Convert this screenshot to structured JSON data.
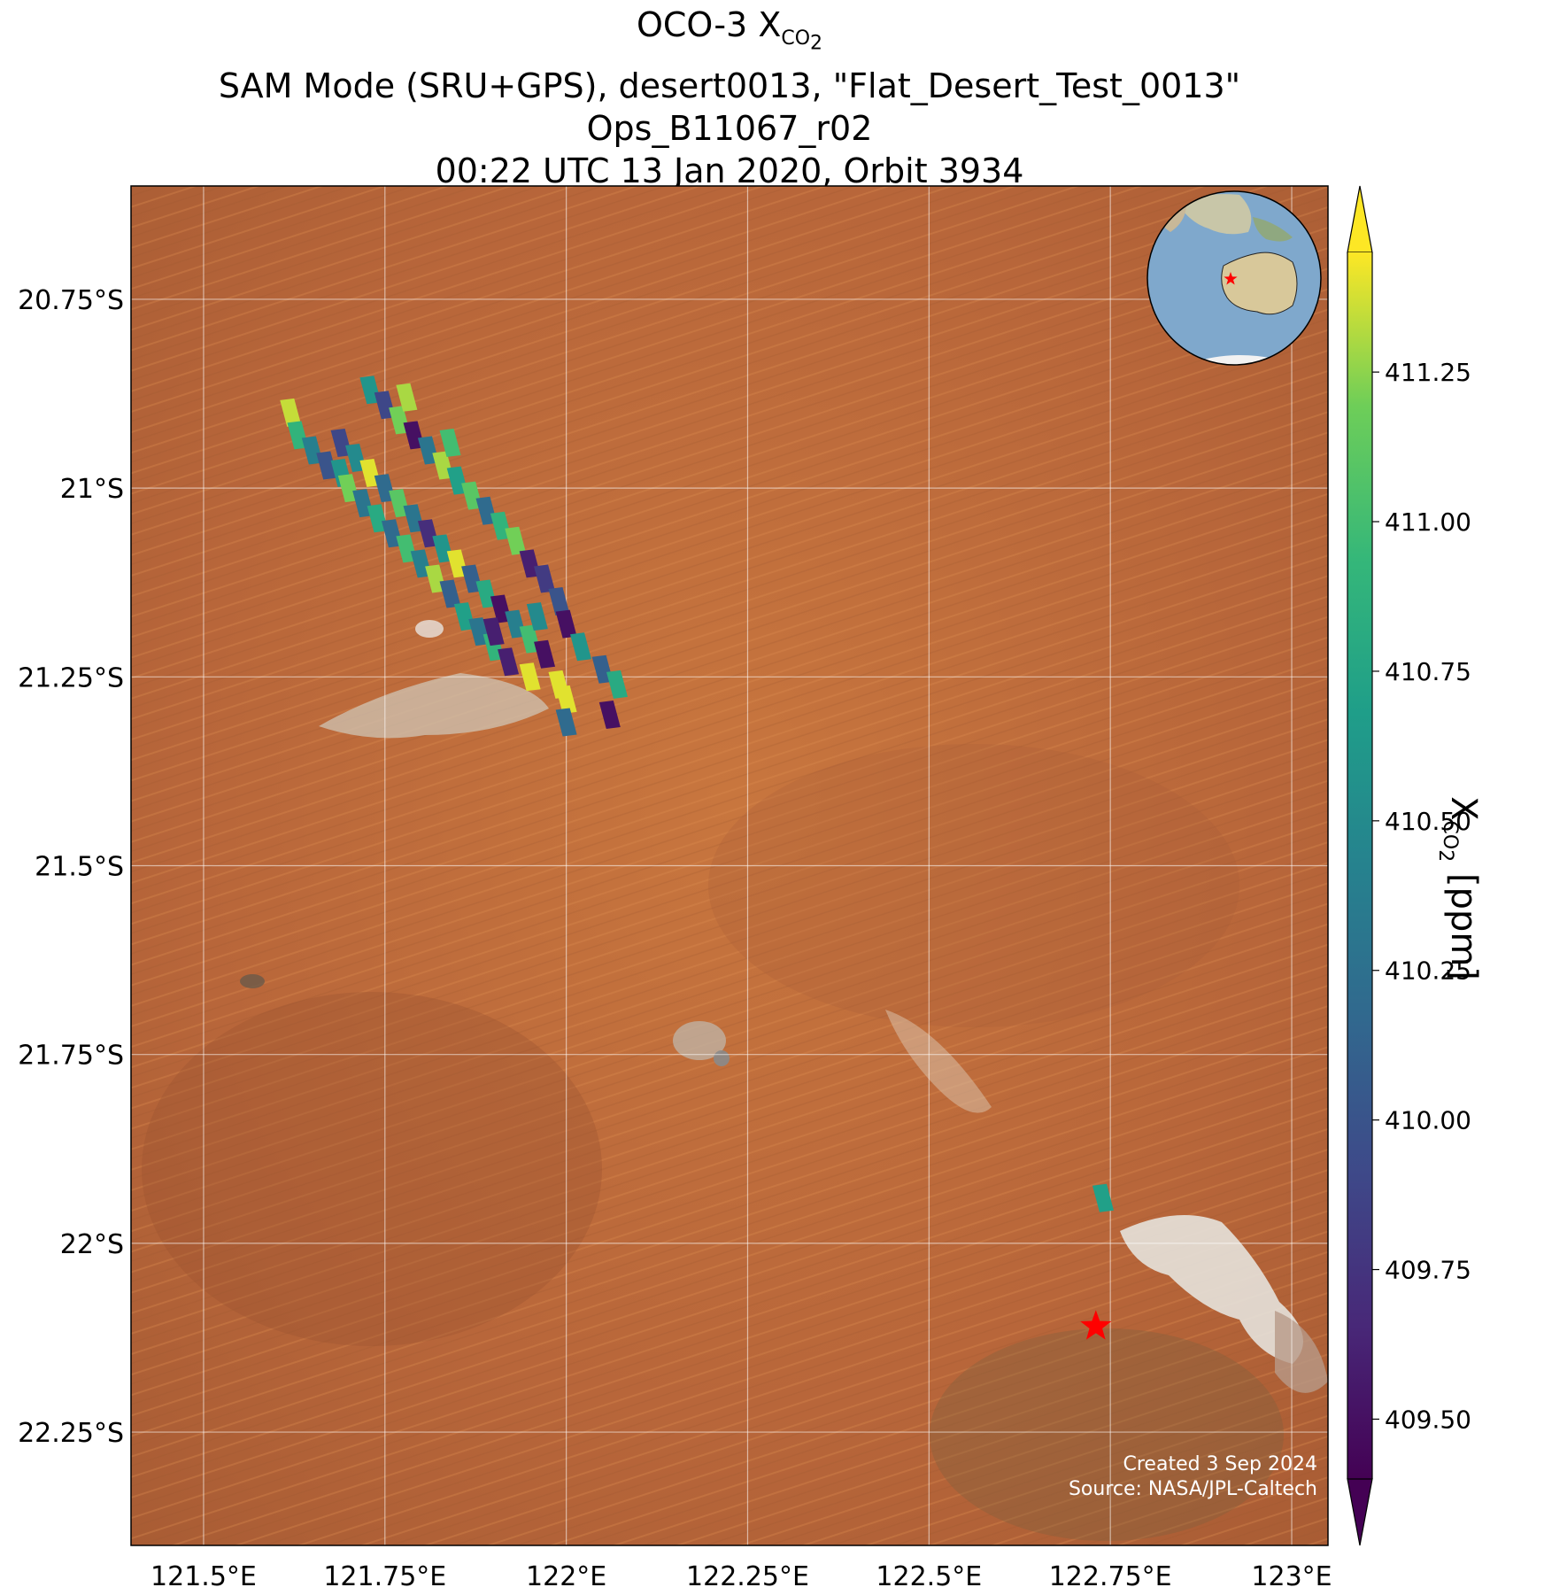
{
  "title": {
    "line1_prefix": "OCO-3 X",
    "line1_sub": "CO",
    "line1_sub2": "2",
    "line2": "SAM Mode (SRU+GPS), desert0013, \"Flat_Desert_Test_0013\"",
    "line3": "Ops_B11067_r02",
    "line4": "00:22 UTC 13 Jan 2020, Orbit 3934"
  },
  "map": {
    "lon_range": [
      121.4,
      123.05
    ],
    "lat_range": [
      -22.4,
      -20.6
    ],
    "lon_ticks": [
      {
        "value": 121.5,
        "label": "121.5°E"
      },
      {
        "value": 121.75,
        "label": "121.75°E"
      },
      {
        "value": 122.0,
        "label": "122°E"
      },
      {
        "value": 122.25,
        "label": "122.25°E"
      },
      {
        "value": 122.5,
        "label": "122.5°E"
      },
      {
        "value": 122.75,
        "label": "122.75°E"
      },
      {
        "value": 123.0,
        "label": "123°E"
      }
    ],
    "lat_ticks": [
      {
        "value": -20.75,
        "label": "20.75°S"
      },
      {
        "value": -21.0,
        "label": "21°S"
      },
      {
        "value": -21.25,
        "label": "21.25°S"
      },
      {
        "value": -21.5,
        "label": "21.5°S"
      },
      {
        "value": -21.75,
        "label": "21.75°S"
      },
      {
        "value": -22.0,
        "label": "22°S"
      },
      {
        "value": -22.25,
        "label": "22.25°S"
      }
    ],
    "grid": true,
    "target": {
      "lon": 122.73,
      "lat": -22.11,
      "color": "#ff0000"
    },
    "basemap_color": "#c4703a",
    "inset_globe": "top-right",
    "inset_globe_icon": "globe-icon"
  },
  "chart_data": {
    "type": "scatter",
    "variable": "XCO2",
    "units": "ppm",
    "colormap": "viridis",
    "clim": [
      409.4,
      411.45
    ],
    "colorbar_ticks": [
      "411.25",
      "411.00",
      "410.75",
      "410.50",
      "410.25",
      "410.00",
      "409.75",
      "409.50"
    ],
    "colorbar_tick_values": [
      411.25,
      411.0,
      410.75,
      410.5,
      410.25,
      410.0,
      409.75,
      409.5
    ],
    "colorbar_label_prefix": "X",
    "colorbar_label_sub": "CO",
    "colorbar_label_sub2": "2",
    "colorbar_label_suffix": " [ppm]",
    "soundings": [
      {
        "lon": 121.62,
        "lat": -20.9,
        "xco2": 411.35
      },
      {
        "lon": 121.63,
        "lat": -20.93,
        "xco2": 410.9
      },
      {
        "lon": 121.65,
        "lat": -20.95,
        "xco2": 410.4
      },
      {
        "lon": 121.67,
        "lat": -20.97,
        "xco2": 410.0
      },
      {
        "lon": 121.69,
        "lat": -20.98,
        "xco2": 410.6
      },
      {
        "lon": 121.7,
        "lat": -21.0,
        "xco2": 411.2
      },
      {
        "lon": 121.72,
        "lat": -21.02,
        "xco2": 410.3
      },
      {
        "lon": 121.74,
        "lat": -21.04,
        "xco2": 410.8
      },
      {
        "lon": 121.76,
        "lat": -21.06,
        "xco2": 410.2
      },
      {
        "lon": 121.78,
        "lat": -21.08,
        "xco2": 411.0
      },
      {
        "lon": 121.8,
        "lat": -21.1,
        "xco2": 410.4
      },
      {
        "lon": 121.82,
        "lat": -21.12,
        "xco2": 411.3
      },
      {
        "lon": 121.84,
        "lat": -21.14,
        "xco2": 410.1
      },
      {
        "lon": 121.86,
        "lat": -21.17,
        "xco2": 410.7
      },
      {
        "lon": 121.88,
        "lat": -21.19,
        "xco2": 410.3
      },
      {
        "lon": 121.9,
        "lat": -21.21,
        "xco2": 410.9
      },
      {
        "lon": 121.92,
        "lat": -21.23,
        "xco2": 409.6
      },
      {
        "lon": 121.95,
        "lat": -21.25,
        "xco2": 411.4
      },
      {
        "lon": 121.69,
        "lat": -20.94,
        "xco2": 409.9
      },
      {
        "lon": 121.71,
        "lat": -20.96,
        "xco2": 410.5
      },
      {
        "lon": 121.73,
        "lat": -20.98,
        "xco2": 411.4
      },
      {
        "lon": 121.75,
        "lat": -21.0,
        "xco2": 410.2
      },
      {
        "lon": 121.77,
        "lat": -21.02,
        "xco2": 411.1
      },
      {
        "lon": 121.79,
        "lat": -21.04,
        "xco2": 410.3
      },
      {
        "lon": 121.81,
        "lat": -21.06,
        "xco2": 409.7
      },
      {
        "lon": 121.83,
        "lat": -21.08,
        "xco2": 410.6
      },
      {
        "lon": 121.85,
        "lat": -21.1,
        "xco2": 411.4
      },
      {
        "lon": 121.87,
        "lat": -21.12,
        "xco2": 410.1
      },
      {
        "lon": 121.89,
        "lat": -21.14,
        "xco2": 410.8
      },
      {
        "lon": 121.91,
        "lat": -21.16,
        "xco2": 409.5
      },
      {
        "lon": 121.93,
        "lat": -21.18,
        "xco2": 410.4
      },
      {
        "lon": 121.95,
        "lat": -21.2,
        "xco2": 411.0
      },
      {
        "lon": 121.97,
        "lat": -21.22,
        "xco2": 409.5
      },
      {
        "lon": 121.99,
        "lat": -21.26,
        "xco2": 411.4
      },
      {
        "lon": 121.73,
        "lat": -20.87,
        "xco2": 410.6
      },
      {
        "lon": 121.75,
        "lat": -20.89,
        "xco2": 409.9
      },
      {
        "lon": 121.77,
        "lat": -20.91,
        "xco2": 411.2
      },
      {
        "lon": 121.79,
        "lat": -20.93,
        "xco2": 409.5
      },
      {
        "lon": 121.81,
        "lat": -20.95,
        "xco2": 410.3
      },
      {
        "lon": 121.83,
        "lat": -20.97,
        "xco2": 411.3
      },
      {
        "lon": 121.85,
        "lat": -20.99,
        "xco2": 410.7
      },
      {
        "lon": 121.87,
        "lat": -21.01,
        "xco2": 411.1
      },
      {
        "lon": 121.89,
        "lat": -21.03,
        "xco2": 410.2
      },
      {
        "lon": 121.91,
        "lat": -21.05,
        "xco2": 410.9
      },
      {
        "lon": 121.93,
        "lat": -21.07,
        "xco2": 411.2
      },
      {
        "lon": 121.95,
        "lat": -21.1,
        "xco2": 409.6
      },
      {
        "lon": 121.97,
        "lat": -21.12,
        "xco2": 409.8
      },
      {
        "lon": 121.99,
        "lat": -21.15,
        "xco2": 410.0
      },
      {
        "lon": 122.0,
        "lat": -21.18,
        "xco2": 409.5
      },
      {
        "lon": 122.02,
        "lat": -21.21,
        "xco2": 410.6
      },
      {
        "lon": 122.0,
        "lat": -21.28,
        "xco2": 411.4
      },
      {
        "lon": 122.0,
        "lat": -21.31,
        "xco2": 410.2
      },
      {
        "lon": 122.05,
        "lat": -21.24,
        "xco2": 410.1
      },
      {
        "lon": 122.07,
        "lat": -21.26,
        "xco2": 410.8
      },
      {
        "lon": 122.06,
        "lat": -21.3,
        "xco2": 409.5
      },
      {
        "lon": 122.74,
        "lat": -21.94,
        "xco2": 410.7
      },
      {
        "lon": 121.78,
        "lat": -20.88,
        "xco2": 411.3
      },
      {
        "lon": 121.84,
        "lat": -20.94,
        "xco2": 411.0
      },
      {
        "lon": 121.9,
        "lat": -21.19,
        "xco2": 409.6
      },
      {
        "lon": 121.96,
        "lat": -21.17,
        "xco2": 410.5
      }
    ]
  },
  "credit": {
    "line1": "Created 3 Sep 2024",
    "line2": "Source: NASA/JPL-Caltech"
  }
}
